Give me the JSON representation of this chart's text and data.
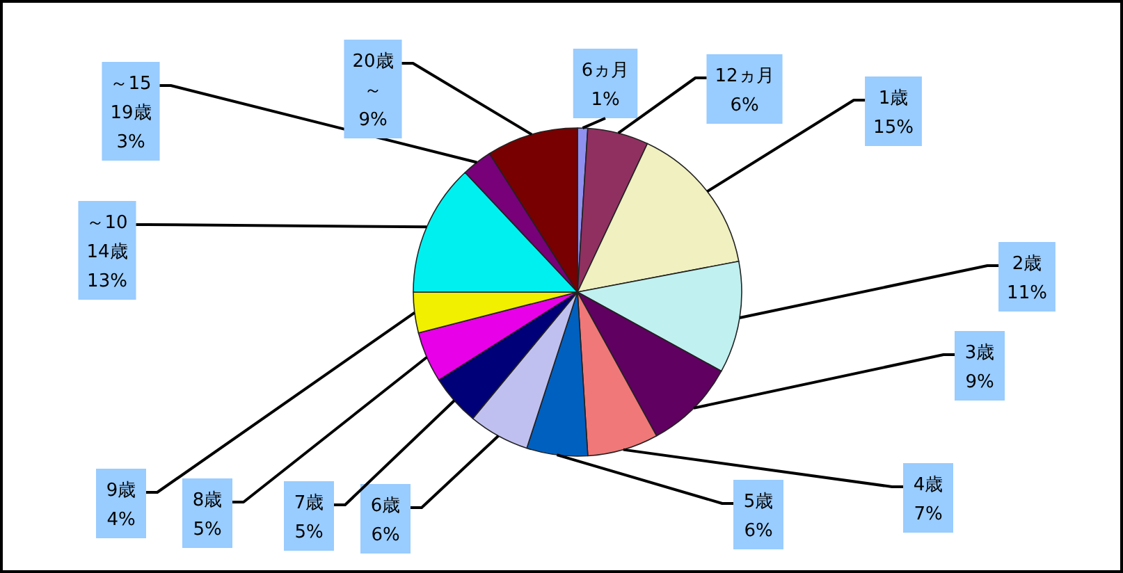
{
  "chart_data": {
    "type": "pie",
    "categories": [
      "6ヵ月",
      "12ヵ月",
      "1歳",
      "2歳",
      "3歳",
      "4歳",
      "5歳",
      "6歳",
      "7歳",
      "8歳",
      "9歳",
      "～10\n14歳",
      "～15\n19歳",
      "20歳～"
    ],
    "values": [
      1,
      6,
      15,
      11,
      9,
      7,
      6,
      6,
      5,
      5,
      4,
      13,
      3,
      9
    ],
    "value_labels": [
      "1%",
      "6%",
      "15%",
      "11%",
      "9%",
      "7%",
      "6%",
      "6%",
      "5%",
      "5%",
      "4%",
      "13%",
      "3%",
      "9%"
    ],
    "colors": [
      "#9090f0",
      "#903060",
      "#f0f0c0",
      "#c0f0f0",
      "#600060",
      "#f07878",
      "#0060c0",
      "#c0c0f0",
      "#000078",
      "#e800e8",
      "#f0f000",
      "#00f0f0",
      "#780078",
      "#780000"
    ]
  }
}
